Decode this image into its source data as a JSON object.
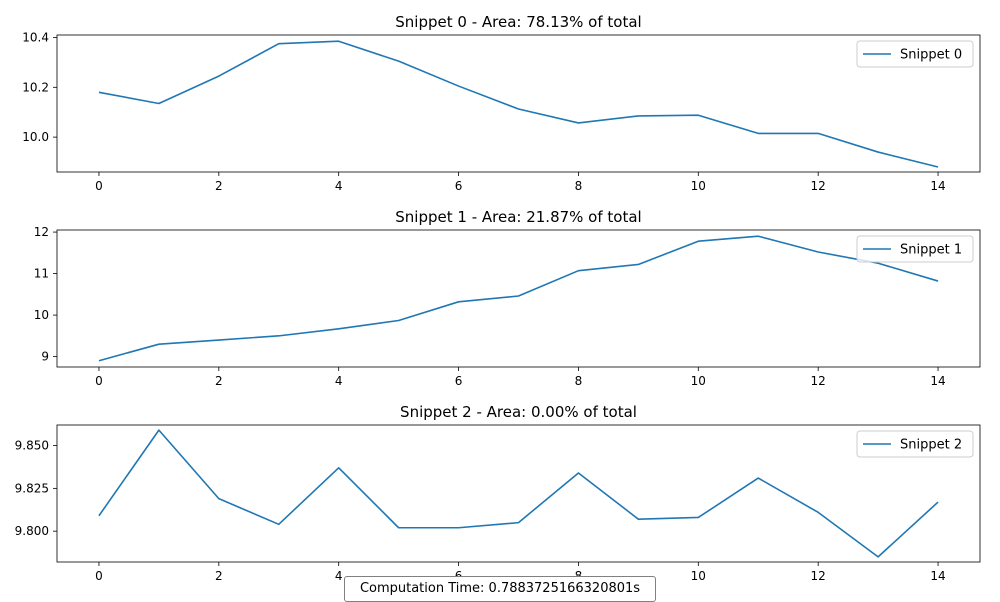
{
  "chart_data": [
    {
      "type": "line",
      "title": "Snippet 0 - Area: 78.13% of total",
      "x": [
        0,
        1,
        2,
        3,
        4,
        5,
        6,
        7,
        8,
        9,
        10,
        11,
        12,
        13,
        14
      ],
      "series": [
        {
          "name": "Snippet 0",
          "values": [
            10.18,
            10.135,
            10.245,
            10.375,
            10.385,
            10.305,
            10.205,
            10.113,
            10.057,
            10.085,
            10.088,
            10.015,
            10.015,
            9.94,
            9.88
          ]
        }
      ],
      "xlim": [
        -0.7,
        14.7
      ],
      "ylim": [
        9.86,
        10.41
      ],
      "xticks": [
        "0",
        "2",
        "4",
        "6",
        "8",
        "10",
        "12",
        "14"
      ],
      "yticks": [
        "10.0",
        "10.2",
        "10.4"
      ],
      "legend": "top-right",
      "grid": false
    },
    {
      "type": "line",
      "title": "Snippet 1 - Area: 21.87% of total",
      "x": [
        0,
        1,
        2,
        3,
        4,
        5,
        6,
        7,
        8,
        9,
        10,
        11,
        12,
        13,
        14
      ],
      "series": [
        {
          "name": "Snippet 1",
          "values": [
            8.9,
            9.3,
            9.4,
            9.5,
            9.67,
            9.87,
            10.32,
            10.46,
            11.07,
            11.22,
            11.78,
            11.9,
            11.52,
            11.25,
            10.82
          ]
        }
      ],
      "xlim": [
        -0.7,
        14.7
      ],
      "ylim": [
        8.75,
        12.05
      ],
      "xticks": [
        "0",
        "2",
        "4",
        "6",
        "8",
        "10",
        "12",
        "14"
      ],
      "yticks": [
        "9",
        "10",
        "11",
        "12"
      ],
      "legend": "top-right",
      "grid": false
    },
    {
      "type": "line",
      "title": "Snippet 2 - Area: 0.00% of total",
      "x": [
        0,
        1,
        2,
        3,
        4,
        5,
        6,
        7,
        8,
        9,
        10,
        11,
        12,
        13,
        14
      ],
      "series": [
        {
          "name": "Snippet 2",
          "values": [
            9.809,
            9.859,
            9.819,
            9.804,
            9.837,
            9.802,
            9.802,
            9.805,
            9.834,
            9.807,
            9.808,
            9.831,
            9.811,
            9.785,
            9.817
          ]
        }
      ],
      "xlim": [
        -0.7,
        14.7
      ],
      "ylim": [
        9.782,
        9.862
      ],
      "xticks": [
        "0",
        "2",
        "4",
        "6",
        "8",
        "10",
        "12",
        "14"
      ],
      "yticks": [
        "9.800",
        "9.825",
        "9.850"
      ],
      "legend": "top-right",
      "grid": false
    }
  ],
  "footer": {
    "computation_time": "Computation Time: 0.7883725166320801s"
  },
  "colors": {
    "line": "#1f77b4",
    "axis": "#000000",
    "legend_border": "#cccccc"
  }
}
